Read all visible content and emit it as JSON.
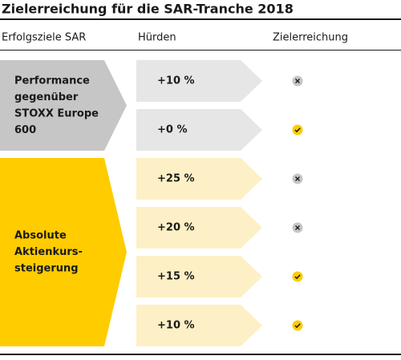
{
  "header": {
    "title": "Zielerreichung für die SAR-Tranche 2018"
  },
  "columns": [
    "Erfolgsziele SAR",
    "Hürden",
    "Zielerreichung"
  ],
  "groups": [
    {
      "label_lines": [
        "Performance",
        "gegenüber",
        "STOXX Europe",
        "600"
      ],
      "color": "#c6c6c6",
      "row_color": "#e6e6e6",
      "rows": [
        {
          "hurdle": "+10 %",
          "achieved": false
        },
        {
          "hurdle": "+0 %",
          "achieved": true
        }
      ]
    },
    {
      "label_lines": [
        "Absolute",
        "Aktienkurs-",
        "steigerung"
      ],
      "color": "#ffcc00",
      "row_color": "#fdf0c6",
      "rows": [
        {
          "hurdle": "+25 %",
          "achieved": false
        },
        {
          "hurdle": "+20 %",
          "achieved": false
        },
        {
          "hurdle": "+15 %",
          "achieved": true
        },
        {
          "hurdle": "+10 %",
          "achieved": true
        }
      ]
    }
  ]
}
